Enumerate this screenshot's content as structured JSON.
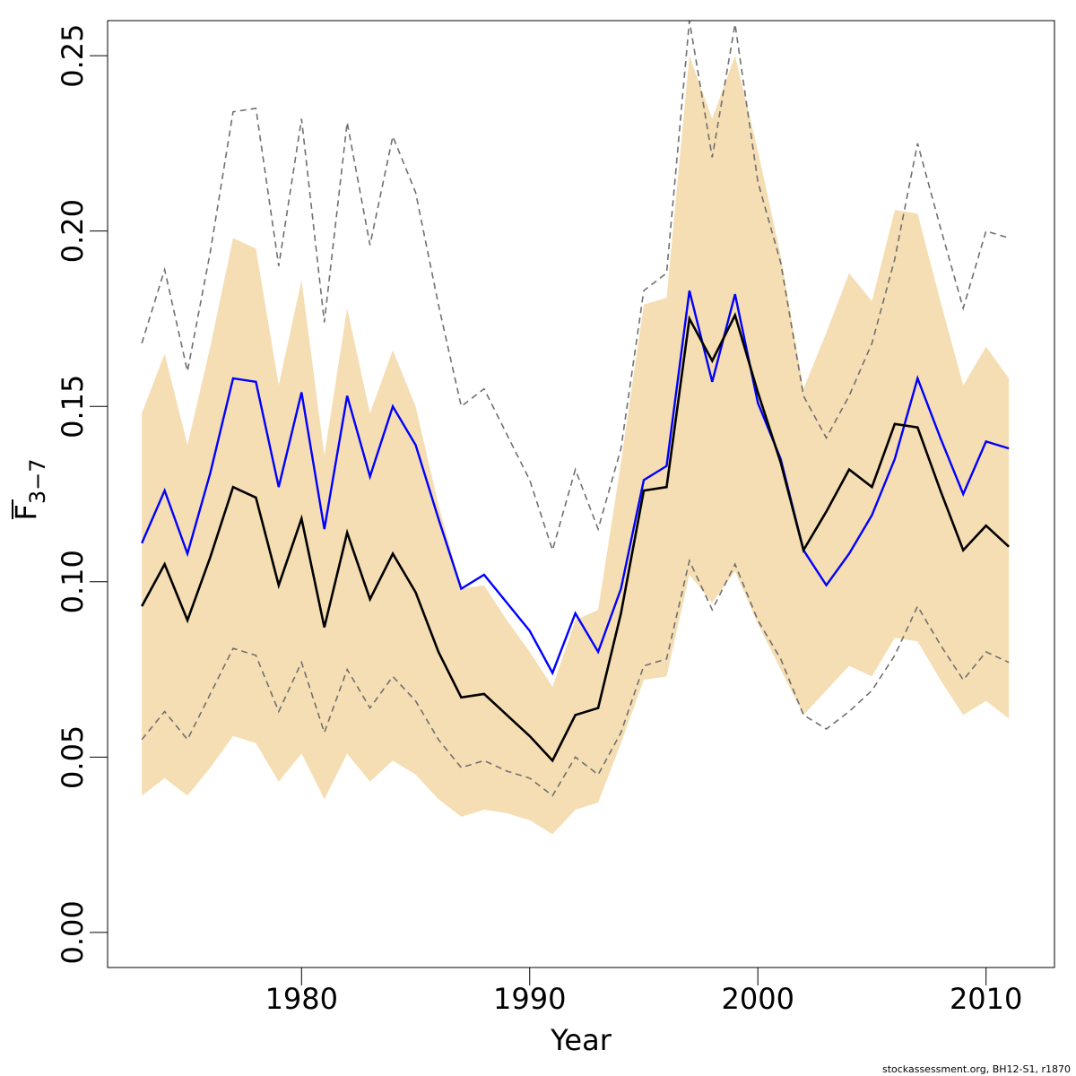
{
  "chart_data": {
    "type": "line",
    "xlabel": "Year",
    "ylabel_main": "F",
    "ylabel_sub": "3−7",
    "credit": "stockassessment.org, BH12-S1, r1870",
    "xlim": [
      1971.5,
      2013.0
    ],
    "ylim": [
      -0.01,
      0.26
    ],
    "x_ticks": [
      1980,
      1990,
      2000,
      2010
    ],
    "x_tick_labels": [
      "1980",
      "1990",
      "2000",
      "2010"
    ],
    "y_ticks": [
      0.0,
      0.05,
      0.1,
      0.15,
      0.2,
      0.25
    ],
    "y_tick_labels": [
      "0.00",
      "0.05",
      "0.10",
      "0.15",
      "0.20",
      "0.25"
    ],
    "colors": {
      "band": "#f5deb3",
      "estimate": "#000000",
      "comparison": "#0000ff",
      "comparison_ci": "#707070"
    },
    "x": [
      1973,
      1974,
      1975,
      1976,
      1977,
      1978,
      1979,
      1980,
      1981,
      1982,
      1983,
      1984,
      1985,
      1986,
      1987,
      1988,
      1989,
      1990,
      1991,
      1992,
      1993,
      1994,
      1995,
      1996,
      1997,
      1998,
      1999,
      2000,
      2001,
      2002,
      2003,
      2004,
      2005,
      2006,
      2007,
      2008,
      2009,
      2010,
      2011
    ],
    "series": [
      {
        "role": "band_upper",
        "values": [
          0.148,
          0.165,
          0.139,
          0.167,
          0.198,
          0.195,
          0.156,
          0.186,
          0.136,
          0.178,
          0.148,
          0.166,
          0.15,
          0.122,
          0.098,
          0.099,
          0.089,
          0.08,
          0.07,
          0.089,
          0.092,
          0.134,
          0.179,
          0.181,
          0.25,
          0.232,
          0.25,
          0.223,
          0.193,
          0.155,
          0.171,
          0.188,
          0.18,
          0.206,
          0.205,
          0.18,
          0.156,
          0.167,
          0.158
        ]
      },
      {
        "role": "band_lower",
        "values": [
          0.039,
          0.044,
          0.039,
          0.047,
          0.056,
          0.054,
          0.043,
          0.051,
          0.038,
          0.051,
          0.043,
          0.049,
          0.045,
          0.038,
          0.033,
          0.035,
          0.034,
          0.032,
          0.028,
          0.035,
          0.037,
          0.054,
          0.072,
          0.073,
          0.102,
          0.094,
          0.103,
          0.088,
          0.075,
          0.062,
          0.069,
          0.076,
          0.073,
          0.084,
          0.083,
          0.072,
          0.062,
          0.066,
          0.061
        ]
      },
      {
        "role": "comparison_upper",
        "values": [
          0.168,
          0.189,
          0.16,
          0.194,
          0.234,
          0.235,
          0.19,
          0.232,
          0.174,
          0.231,
          0.196,
          0.227,
          0.211,
          0.179,
          0.15,
          0.155,
          0.142,
          0.129,
          0.109,
          0.132,
          0.115,
          0.138,
          0.183,
          0.188,
          0.26,
          0.221,
          0.259,
          0.214,
          0.191,
          0.153,
          0.141,
          0.153,
          0.168,
          0.192,
          0.225,
          0.201,
          0.178,
          0.2,
          0.198
        ]
      },
      {
        "role": "comparison_lower",
        "values": [
          0.055,
          0.063,
          0.055,
          0.068,
          0.081,
          0.079,
          0.063,
          0.077,
          0.057,
          0.075,
          0.064,
          0.073,
          0.066,
          0.055,
          0.047,
          0.049,
          0.046,
          0.044,
          0.039,
          0.05,
          0.045,
          0.057,
          0.076,
          0.078,
          0.106,
          0.092,
          0.105,
          0.089,
          0.078,
          0.062,
          0.058,
          0.063,
          0.069,
          0.079,
          0.093,
          0.082,
          0.072,
          0.08,
          0.077
        ]
      },
      {
        "role": "comparison",
        "values": [
          0.111,
          0.126,
          0.108,
          0.131,
          0.158,
          0.157,
          0.127,
          0.154,
          0.115,
          0.153,
          0.13,
          0.15,
          0.139,
          0.118,
          0.098,
          0.102,
          0.094,
          0.086,
          0.074,
          0.091,
          0.08,
          0.098,
          0.129,
          0.133,
          0.183,
          0.157,
          0.182,
          0.151,
          0.135,
          0.109,
          0.099,
          0.108,
          0.119,
          0.135,
          0.158,
          0.141,
          0.125,
          0.14,
          0.138
        ]
      },
      {
        "role": "estimate",
        "values": [
          0.093,
          0.105,
          0.089,
          0.107,
          0.127,
          0.124,
          0.099,
          0.118,
          0.087,
          0.114,
          0.095,
          0.108,
          0.097,
          0.08,
          0.067,
          0.068,
          0.062,
          0.056,
          0.049,
          0.062,
          0.064,
          0.091,
          0.126,
          0.127,
          0.175,
          0.163,
          0.176,
          0.154,
          0.134,
          0.109,
          0.12,
          0.132,
          0.127,
          0.145,
          0.144,
          0.126,
          0.109,
          0.116,
          0.11
        ]
      }
    ]
  }
}
